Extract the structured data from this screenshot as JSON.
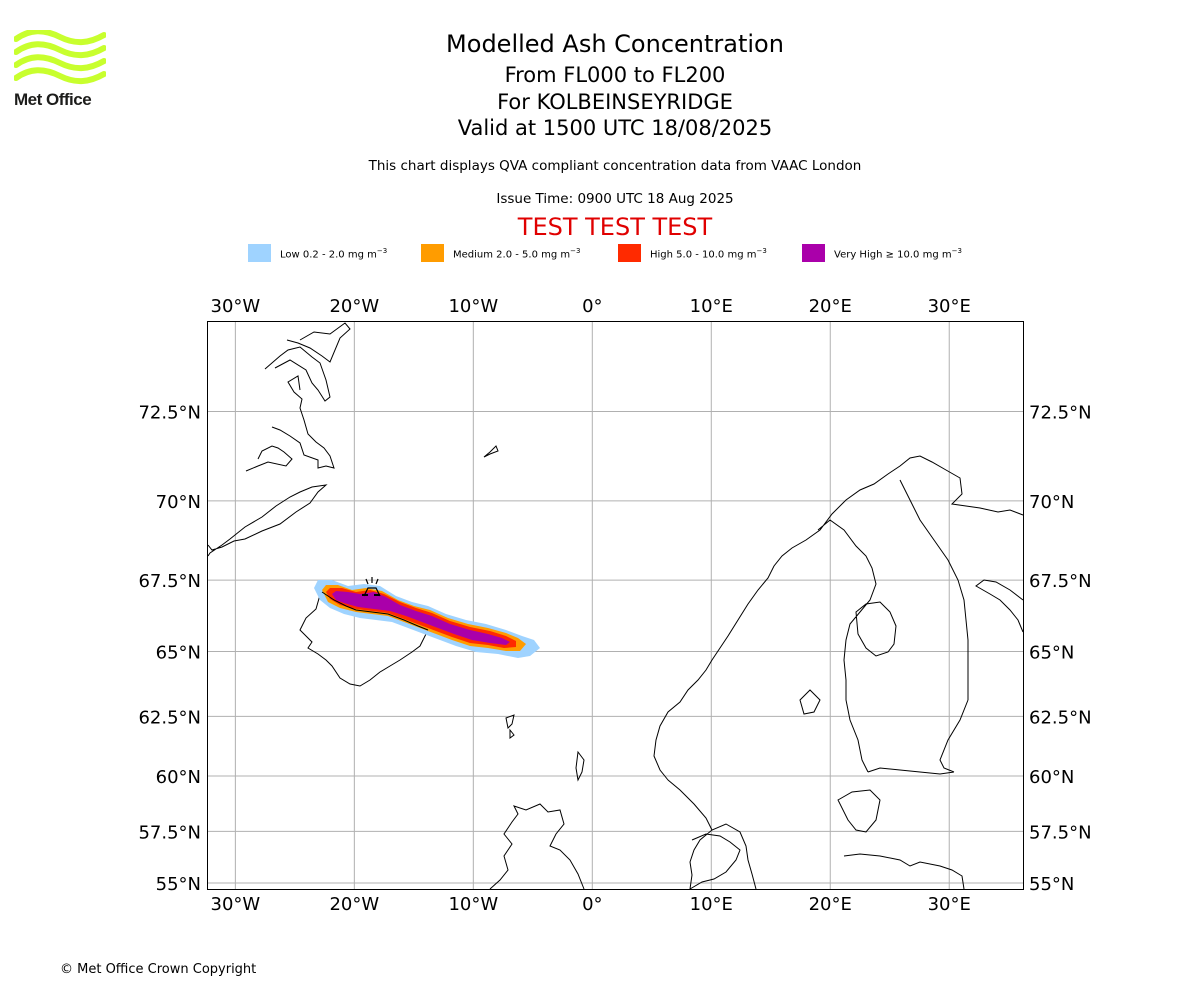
{
  "logo": {
    "text": "Met Office",
    "colors": {
      "waves": "#c8ff2e",
      "text": "#1d1d1b"
    }
  },
  "header": {
    "title": "Modelled Ash Concentration",
    "levels": "From FL000 to FL200",
    "volcano": "For KOLBEINSEYRIDGE",
    "valid": "Valid at 1500 UTC 18/08/2025",
    "compliance_note": "This chart displays QVA compliant concentration data from VAAC London",
    "issue_time": "Issue Time: 0900 UTC 18 Aug 2025",
    "test_banner": "TEST TEST TEST"
  },
  "legend": [
    {
      "label": "Low 0.2 - 2.0 mg m",
      "color": "#9fd3ff"
    },
    {
      "label": "Medium 2.0 - 5.0 mg m",
      "color": "#ff9c00"
    },
    {
      "label": "High 5.0 - 10.0 mg m",
      "color": "#ff2a00"
    },
    {
      "label": "Very High  ≥  10.0 mg m",
      "color": "#aa00aa"
    }
  ],
  "legend_unit_exponent": "−3",
  "map": {
    "extent": {
      "lon": [
        -32.3,
        36.2
      ],
      "lat": [
        54.7,
        74.7
      ]
    },
    "grid_color": "#b0b0b0",
    "lon_ticks": [
      {
        "value": -30,
        "label": "30°W"
      },
      {
        "value": -20,
        "label": "20°W"
      },
      {
        "value": -10,
        "label": "10°W"
      },
      {
        "value": 0,
        "label": "0°"
      },
      {
        "value": 10,
        "label": "10°E"
      },
      {
        "value": 20,
        "label": "20°E"
      },
      {
        "value": 30,
        "label": "30°E"
      }
    ],
    "lat_ticks": [
      {
        "value": 72.5,
        "label": "72.5°N"
      },
      {
        "value": 70,
        "label": "70°N"
      },
      {
        "value": 67.5,
        "label": "67.5°N"
      },
      {
        "value": 65,
        "label": "65°N"
      },
      {
        "value": 62.5,
        "label": "62.5°N"
      },
      {
        "value": 60,
        "label": "60°N"
      },
      {
        "value": 57.5,
        "label": "57.5°N"
      },
      {
        "value": 55,
        "label": "55°N"
      }
    ]
  },
  "footer": {
    "copyright": "© Met Office Crown Copyright"
  }
}
